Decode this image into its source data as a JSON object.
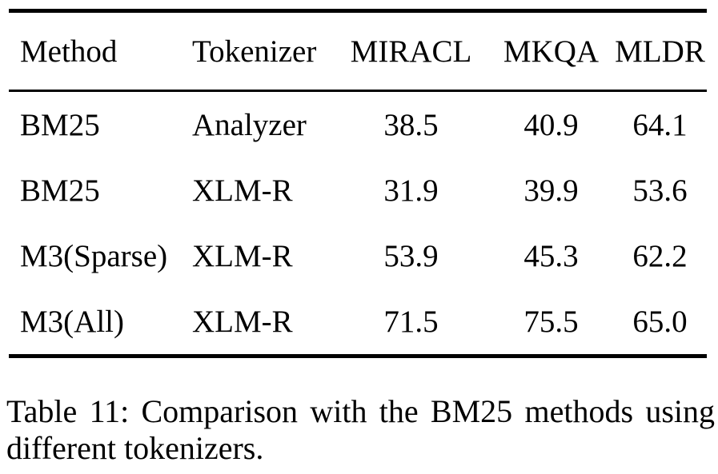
{
  "table": {
    "columns": [
      "Method",
      "Tokenizer",
      "MIRACL",
      "MKQA",
      "MLDR"
    ],
    "rows": [
      [
        "BM25",
        "Analyzer",
        "38.5",
        "40.9",
        "64.1"
      ],
      [
        "BM25",
        "XLM-R",
        "31.9",
        "39.9",
        "53.6"
      ],
      [
        "M3(Sparse)",
        "XLM-R",
        "53.9",
        "45.3",
        "62.2"
      ],
      [
        "M3(All)",
        "XLM-R",
        "71.5",
        "75.5",
        "65.0"
      ]
    ]
  },
  "caption": "Table 11: Comparison with the BM25 methods using different tokenizers.",
  "colors": {
    "text": "#000000",
    "background": "#ffffff",
    "rule": "#000000"
  }
}
